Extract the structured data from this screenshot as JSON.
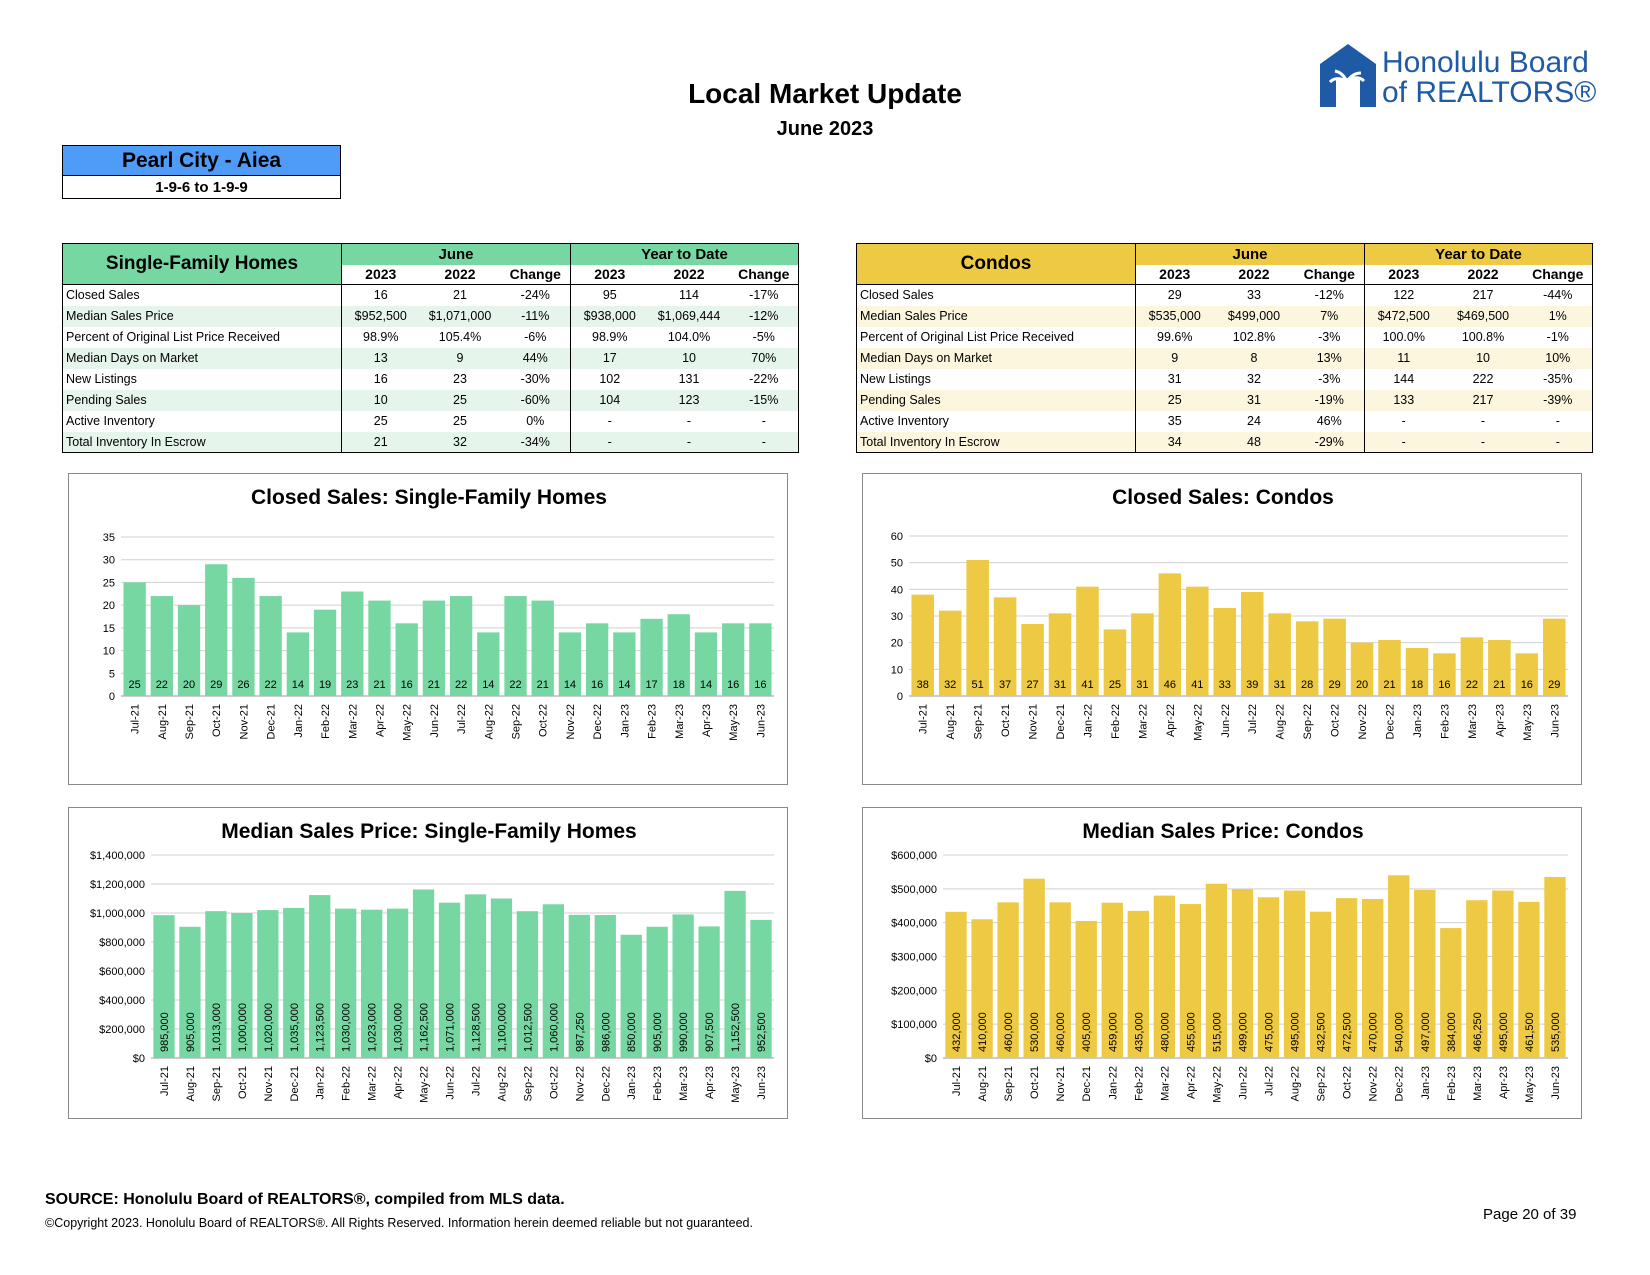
{
  "header": {
    "title": "Local Market Update",
    "subtitle": "June 2023",
    "logo_line1": "Honolulu Board",
    "logo_line2": "of REALTORS®"
  },
  "area": {
    "name": "Pearl City - Aiea",
    "range": "1-9-6 to 1-9-9"
  },
  "sf_table": {
    "title": "Single-Family Homes",
    "group1": "June",
    "group2": "Year to Date",
    "cols": [
      "2023",
      "2022",
      "Change",
      "2023",
      "2022",
      "Change"
    ],
    "rows": [
      {
        "label": "Closed Sales",
        "v": [
          "16",
          "21",
          "-24%",
          "95",
          "114",
          "-17%"
        ]
      },
      {
        "label": "Median Sales Price",
        "v": [
          "$952,500",
          "$1,071,000",
          "-11%",
          "$938,000",
          "$1,069,444",
          "-12%"
        ]
      },
      {
        "label": "Percent of Original List Price Received",
        "v": [
          "98.9%",
          "105.4%",
          "-6%",
          "98.9%",
          "104.0%",
          "-5%"
        ]
      },
      {
        "label": "Median Days on Market",
        "v": [
          "13",
          "9",
          "44%",
          "17",
          "10",
          "70%"
        ]
      },
      {
        "label": "New Listings",
        "v": [
          "16",
          "23",
          "-30%",
          "102",
          "131",
          "-22%"
        ]
      },
      {
        "label": "Pending Sales",
        "v": [
          "10",
          "25",
          "-60%",
          "104",
          "123",
          "-15%"
        ]
      },
      {
        "label": "Active Inventory",
        "v": [
          "25",
          "25",
          "0%",
          "-",
          "-",
          "-"
        ]
      },
      {
        "label": "Total Inventory In Escrow",
        "v": [
          "21",
          "32",
          "-34%",
          "-",
          "-",
          "-"
        ]
      }
    ]
  },
  "co_table": {
    "title": "Condos",
    "group1": "June",
    "group2": "Year to Date",
    "cols": [
      "2023",
      "2022",
      "Change",
      "2023",
      "2022",
      "Change"
    ],
    "rows": [
      {
        "label": "Closed Sales",
        "v": [
          "29",
          "33",
          "-12%",
          "122",
          "217",
          "-44%"
        ]
      },
      {
        "label": "Median Sales Price",
        "v": [
          "$535,000",
          "$499,000",
          "7%",
          "$472,500",
          "$469,500",
          "1%"
        ]
      },
      {
        "label": "Percent of Original List Price Received",
        "v": [
          "99.6%",
          "102.8%",
          "-3%",
          "100.0%",
          "100.8%",
          "-1%"
        ]
      },
      {
        "label": "Median Days on Market",
        "v": [
          "9",
          "8",
          "13%",
          "11",
          "10",
          "10%"
        ]
      },
      {
        "label": "New Listings",
        "v": [
          "31",
          "32",
          "-3%",
          "144",
          "222",
          "-35%"
        ]
      },
      {
        "label": "Pending Sales",
        "v": [
          "25",
          "31",
          "-19%",
          "133",
          "217",
          "-39%"
        ]
      },
      {
        "label": "Active Inventory",
        "v": [
          "35",
          "24",
          "46%",
          "-",
          "-",
          "-"
        ]
      },
      {
        "label": "Total Inventory In Escrow",
        "v": [
          "34",
          "48",
          "-29%",
          "-",
          "-",
          "-"
        ]
      }
    ]
  },
  "chart_data": [
    {
      "type": "bar",
      "title": "Closed Sales: Single-Family Homes",
      "categories": [
        "Jul-21",
        "Aug-21",
        "Sep-21",
        "Oct-21",
        "Nov-21",
        "Dec-21",
        "Jan-22",
        "Feb-22",
        "Mar-22",
        "Apr-22",
        "May-22",
        "Jun-22",
        "Jul-22",
        "Aug-22",
        "Sep-22",
        "Oct-22",
        "Nov-22",
        "Dec-22",
        "Jan-23",
        "Feb-23",
        "Mar-23",
        "Apr-23",
        "May-23",
        "Jun-23"
      ],
      "values": [
        25,
        22,
        20,
        29,
        26,
        22,
        14,
        19,
        23,
        21,
        16,
        21,
        22,
        14,
        22,
        21,
        14,
        16,
        14,
        17,
        18,
        14,
        16,
        16
      ],
      "labels": [
        "25",
        "22",
        "20",
        "29",
        "26",
        "22",
        "14",
        "19",
        "23",
        "21",
        "16",
        "21",
        "22",
        "14",
        "22",
        "21",
        "14",
        "16",
        "14",
        "17",
        "18",
        "14",
        "16",
        "16"
      ],
      "yticks": [
        "0",
        "5",
        "10",
        "15",
        "20",
        "25",
        "30",
        "35"
      ],
      "ylim": [
        0,
        35
      ],
      "color": "#76d7a3",
      "label_mode": "bottom"
    },
    {
      "type": "bar",
      "title": "Closed Sales: Condos",
      "categories": [
        "Jul-21",
        "Aug-21",
        "Sep-21",
        "Oct-21",
        "Nov-21",
        "Dec-21",
        "Jan-22",
        "Feb-22",
        "Mar-22",
        "Apr-22",
        "May-22",
        "Jun-22",
        "Jul-22",
        "Aug-22",
        "Sep-22",
        "Oct-22",
        "Nov-22",
        "Dec-22",
        "Jan-23",
        "Feb-23",
        "Mar-23",
        "Apr-23",
        "May-23",
        "Jun-23"
      ],
      "values": [
        38,
        32,
        51,
        37,
        27,
        31,
        41,
        25,
        31,
        46,
        41,
        33,
        39,
        31,
        28,
        29,
        20,
        21,
        18,
        16,
        22,
        21,
        16,
        29
      ],
      "labels": [
        "38",
        "32",
        "51",
        "37",
        "27",
        "31",
        "41",
        "25",
        "31",
        "46",
        "41",
        "33",
        "39",
        "31",
        "28",
        "29",
        "20",
        "21",
        "18",
        "16",
        "22",
        "21",
        "16",
        "29"
      ],
      "yticks": [
        "0",
        "10",
        "20",
        "30",
        "40",
        "50",
        "60"
      ],
      "ylim": [
        0,
        60
      ],
      "color": "#eec943",
      "label_mode": "bottom"
    },
    {
      "type": "bar",
      "title": "Median Sales Price: Single-Family Homes",
      "categories": [
        "Jul-21",
        "Aug-21",
        "Sep-21",
        "Oct-21",
        "Nov-21",
        "Dec-21",
        "Jan-22",
        "Feb-22",
        "Mar-22",
        "Apr-22",
        "May-22",
        "Jun-22",
        "Jul-22",
        "Aug-22",
        "Sep-22",
        "Oct-22",
        "Nov-22",
        "Dec-22",
        "Jan-23",
        "Feb-23",
        "Mar-23",
        "Apr-23",
        "May-23",
        "Jun-23"
      ],
      "values": [
        985000,
        905000,
        1013000,
        1000000,
        1020000,
        1035000,
        1123500,
        1030000,
        1023000,
        1030000,
        1162500,
        1071000,
        1128500,
        1100000,
        1012500,
        1060000,
        987250,
        986000,
        850000,
        905000,
        990000,
        907500,
        1152500,
        952500
      ],
      "labels": [
        "985,000",
        "905,000",
        "1,013,000",
        "1,000,000",
        "1,020,000",
        "1,035,000",
        "1,123,500",
        "1,030,000",
        "1,023,000",
        "1,030,000",
        "1,162,500",
        "1,071,000",
        "1,128,500",
        "1,100,000",
        "1,012,500",
        "1,060,000",
        "987,250",
        "986,000",
        "850,000",
        "905,000",
        "990,000",
        "907,500",
        "1,152,500",
        "952,500"
      ],
      "yticks": [
        "$0",
        "$200,000",
        "$400,000",
        "$600,000",
        "$800,000",
        "$1,000,000",
        "$1,200,000",
        "$1,400,000"
      ],
      "ylim": [
        0,
        1400000
      ],
      "color": "#76d7a3",
      "label_mode": "vertical"
    },
    {
      "type": "bar",
      "title": "Median Sales Price: Condos",
      "categories": [
        "Jul-21",
        "Aug-21",
        "Sep-21",
        "Oct-21",
        "Nov-21",
        "Dec-21",
        "Jan-22",
        "Feb-22",
        "Mar-22",
        "Apr-22",
        "May-22",
        "Jun-22",
        "Jul-22",
        "Aug-22",
        "Sep-22",
        "Oct-22",
        "Nov-22",
        "Dec-22",
        "Jan-23",
        "Feb-23",
        "Mar-23",
        "Apr-23",
        "May-23",
        "Jun-23"
      ],
      "values": [
        432000,
        410000,
        460000,
        530000,
        460000,
        405000,
        459000,
        435000,
        480000,
        455000,
        515000,
        499000,
        475000,
        495000,
        432500,
        472500,
        470000,
        540000,
        497000,
        384000,
        466250,
        495000,
        461500,
        535000
      ],
      "labels": [
        "432,000",
        "410,000",
        "460,000",
        "530,000",
        "460,000",
        "405,000",
        "459,000",
        "435,000",
        "480,000",
        "455,000",
        "515,000",
        "499,000",
        "475,000",
        "495,000",
        "432,500",
        "472,500",
        "470,000",
        "540,000",
        "497,000",
        "384,000",
        "466,250",
        "495,000",
        "461,500",
        "535,000"
      ],
      "yticks": [
        "$0",
        "$100,000",
        "$200,000",
        "$300,000",
        "$400,000",
        "$500,000",
        "$600,000"
      ],
      "ylim": [
        0,
        600000
      ],
      "color": "#eec943",
      "label_mode": "vertical"
    }
  ],
  "footer": {
    "source": "SOURCE: Honolulu Board of REALTORS®, compiled from MLS data.",
    "copyright": "©Copyright 2023. Honolulu Board of REALTORS®. All Rights Reserved. Information herein deemed reliable but not guaranteed.",
    "page": "Page 20 of 39"
  }
}
